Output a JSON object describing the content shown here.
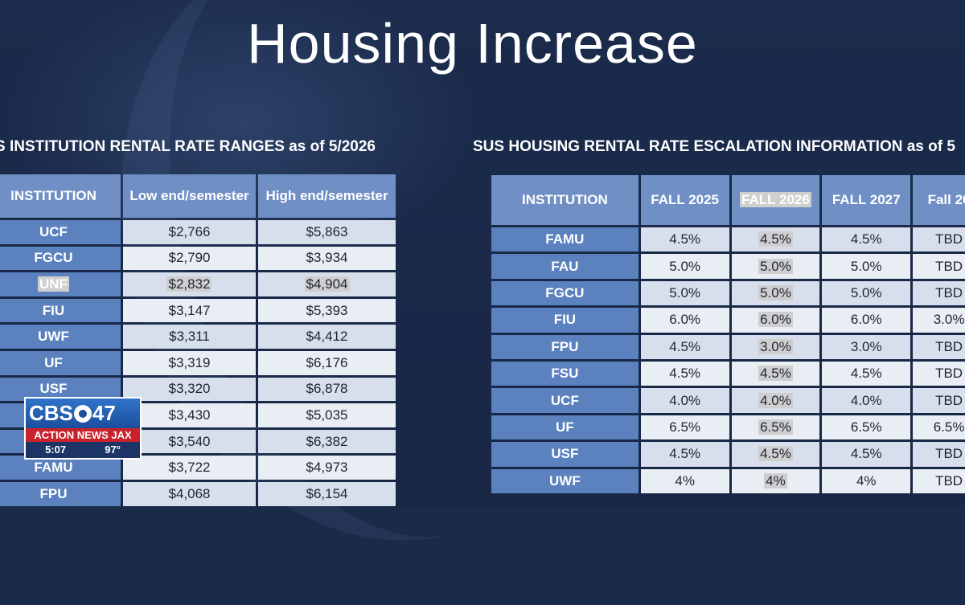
{
  "slide": {
    "title": "Housing Increase",
    "left_subtitle": "S INSTITUTION RENTAL RATE RANGES as of 5/2026",
    "right_subtitle": "SUS HOUSING RENTAL RATE ESCALATION INFORMATION as of 5"
  },
  "left_table": {
    "headers": [
      "INSTITUTION",
      "Low end/semester",
      "High end/semester"
    ],
    "rows": [
      [
        "UCF",
        "$2,766",
        "$5,863"
      ],
      [
        "FGCU",
        "$2,790",
        "$3,934"
      ],
      [
        "UNF",
        "$2,832",
        "$4,904"
      ],
      [
        "FIU",
        "$3,147",
        "$5,393"
      ],
      [
        "UWF",
        "$3,311",
        "$4,412"
      ],
      [
        "UF",
        "$3,319",
        "$6,176"
      ],
      [
        "USF",
        "$3,320",
        "$6,878"
      ],
      [
        "",
        "$3,430",
        "$5,035"
      ],
      [
        "",
        "$3,540",
        "$6,382"
      ],
      [
        "FAMU",
        "$3,722",
        "$4,973"
      ],
      [
        "FPU",
        "$4,068",
        "$6,154"
      ]
    ]
  },
  "right_table": {
    "headers": [
      "INSTITUTION",
      "FALL 2025",
      "FALL 2026",
      "FALL 2027",
      "Fall 20"
    ],
    "rows": [
      [
        "FAMU",
        "4.5%",
        "4.5%",
        "4.5%",
        "TBD"
      ],
      [
        "FAU",
        "5.0%",
        "5.0%",
        "5.0%",
        "TBD"
      ],
      [
        "FGCU",
        "5.0%",
        "5.0%",
        "5.0%",
        "TBD"
      ],
      [
        "FIU",
        "6.0%",
        "6.0%",
        "6.0%",
        "3.0%"
      ],
      [
        "FPU",
        "4.5%",
        "3.0%",
        "3.0%",
        "TBD"
      ],
      [
        "FSU",
        "4.5%",
        "4.5%",
        "4.5%",
        "TBD"
      ],
      [
        "UCF",
        "4.0%",
        "4.0%",
        "4.0%",
        "TBD"
      ],
      [
        "UF",
        "6.5%",
        "6.5%",
        "6.5%",
        "6.5%"
      ],
      [
        "USF",
        "4.5%",
        "4.5%",
        "4.5%",
        "TBD"
      ],
      [
        "UWF",
        "4%",
        "4%",
        "4%",
        "TBD"
      ]
    ]
  },
  "overlay": {
    "station_top": "CBS",
    "station_number": "47",
    "station_name": "ACTION NEWS JAX",
    "time": "5:07",
    "temperature": "97°"
  },
  "colors": {
    "background": "#1a2a48",
    "header_blue": "#6f8fc5",
    "institution_blue": "#5b82bf",
    "cell_light": "#d8dfec",
    "logo_red": "#c8232c"
  }
}
